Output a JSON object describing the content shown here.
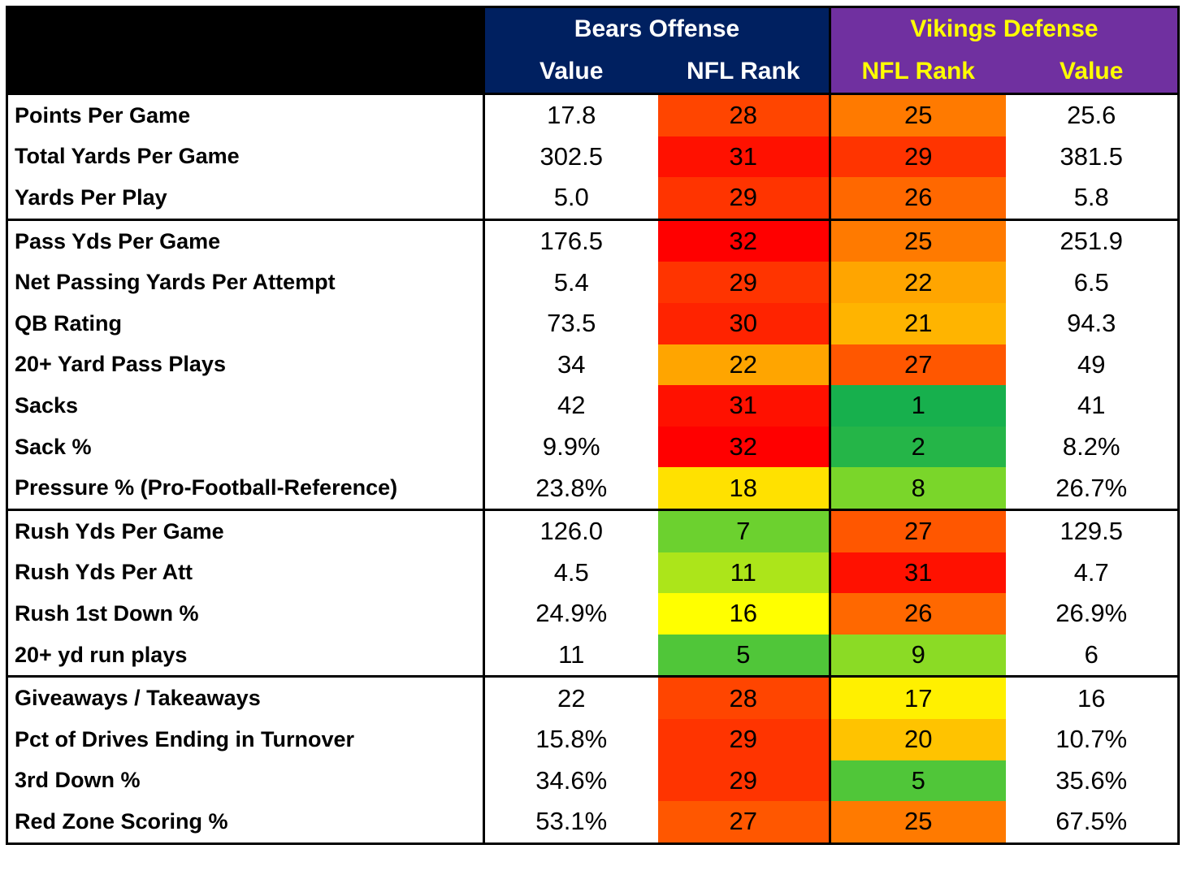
{
  "chart_data": {
    "type": "table",
    "header": {
      "bears_group": "Bears Offense",
      "vikings_group": "Vikings Defense",
      "bears_cols": [
        "Value",
        "NFL Rank"
      ],
      "vikings_cols": [
        "NFL Rank",
        "Value"
      ]
    },
    "rank_colors": {
      "best": "#17b04d",
      "mid": "#ffff00",
      "worst": "#ff0000"
    },
    "rows": [
      {
        "stat": "Points Per Game",
        "bears_value": "17.8",
        "bears_rank": 28,
        "vikings_rank": 25,
        "vikings_value": "25.6",
        "group_start": true
      },
      {
        "stat": "Total Yards Per Game",
        "bears_value": "302.5",
        "bears_rank": 31,
        "vikings_rank": 29,
        "vikings_value": "381.5"
      },
      {
        "stat": "Yards Per Play",
        "bears_value": "5.0",
        "bears_rank": 29,
        "vikings_rank": 26,
        "vikings_value": "5.8"
      },
      {
        "stat": "Pass Yds Per Game",
        "bears_value": "176.5",
        "bears_rank": 32,
        "vikings_rank": 25,
        "vikings_value": "251.9",
        "group_start": true
      },
      {
        "stat": "Net Passing Yards Per Attempt",
        "bears_value": "5.4",
        "bears_rank": 29,
        "vikings_rank": 22,
        "vikings_value": "6.5"
      },
      {
        "stat": "QB Rating",
        "bears_value": "73.5",
        "bears_rank": 30,
        "vikings_rank": 21,
        "vikings_value": "94.3"
      },
      {
        "stat": "20+ Yard Pass Plays",
        "bears_value": "34",
        "bears_rank": 22,
        "vikings_rank": 27,
        "vikings_value": "49"
      },
      {
        "stat": "Sacks",
        "bears_value": "42",
        "bears_rank": 31,
        "vikings_rank": 1,
        "vikings_value": "41"
      },
      {
        "stat": "Sack %",
        "bears_value": "9.9%",
        "bears_rank": 32,
        "vikings_rank": 2,
        "vikings_value": "8.2%"
      },
      {
        "stat": "Pressure % (Pro-Football-Reference)",
        "bears_value": "23.8%",
        "bears_rank": 18,
        "vikings_rank": 8,
        "vikings_value": "26.7%"
      },
      {
        "stat": "Rush Yds Per Game",
        "bears_value": "126.0",
        "bears_rank": 7,
        "vikings_rank": 27,
        "vikings_value": "129.5",
        "group_start": true
      },
      {
        "stat": "Rush Yds Per Att",
        "bears_value": "4.5",
        "bears_rank": 11,
        "vikings_rank": 31,
        "vikings_value": "4.7"
      },
      {
        "stat": "Rush 1st Down %",
        "bears_value": "24.9%",
        "bears_rank": 16,
        "vikings_rank": 26,
        "vikings_value": "26.9%"
      },
      {
        "stat": "20+ yd run plays",
        "bears_value": "11",
        "bears_rank": 5,
        "vikings_rank": 9,
        "vikings_value": "6"
      },
      {
        "stat": "Giveaways / Takeaways",
        "bears_value": "22",
        "bears_rank": 28,
        "vikings_rank": 17,
        "vikings_value": "16",
        "group_start": true
      },
      {
        "stat": "Pct of Drives Ending in Turnover",
        "bears_value": "15.8%",
        "bears_rank": 29,
        "vikings_rank": 20,
        "vikings_value": "10.7%"
      },
      {
        "stat": "3rd Down %",
        "bears_value": "34.6%",
        "bears_rank": 29,
        "vikings_rank": 5,
        "vikings_value": "35.6%"
      },
      {
        "stat": "Red Zone Scoring %",
        "bears_value": "53.1%",
        "bears_rank": 27,
        "vikings_rank": 25,
        "vikings_value": "67.5%"
      }
    ]
  }
}
